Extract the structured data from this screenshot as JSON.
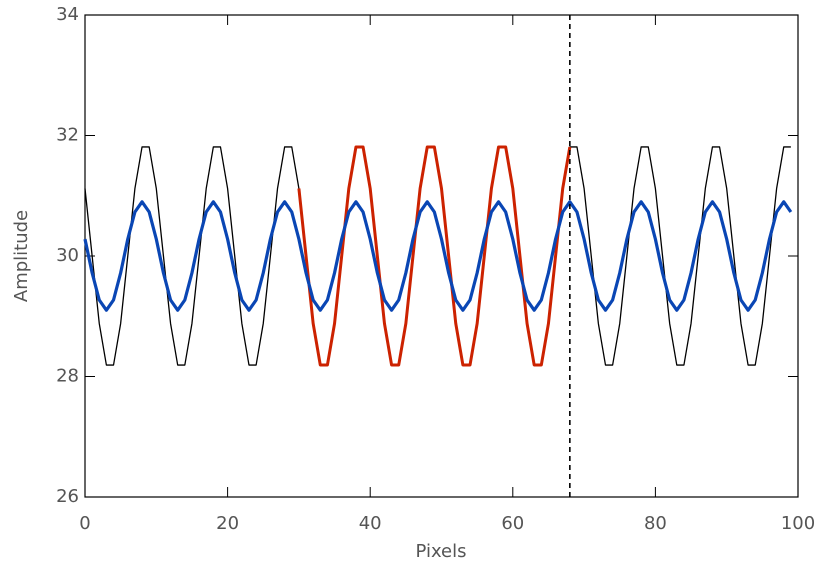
{
  "chart_data": {
    "type": "line",
    "x_label": "Pixels",
    "y_label": "Amplitude",
    "xlim": [
      0,
      100
    ],
    "xticks": [
      0,
      20,
      40,
      60,
      80,
      100
    ],
    "ylim": [
      26,
      34
    ],
    "yticks": [
      26,
      28,
      30,
      32,
      34
    ],
    "vline": 68,
    "x": [
      0,
      1,
      2,
      3,
      4,
      5,
      6,
      7,
      8,
      9,
      10,
      11,
      12,
      13,
      14,
      15,
      16,
      17,
      18,
      19,
      20,
      21,
      22,
      23,
      24,
      25,
      26,
      27,
      28,
      29,
      30,
      31,
      32,
      33,
      34,
      35,
      36,
      37,
      38,
      39,
      40,
      41,
      42,
      43,
      44,
      45,
      46,
      47,
      48,
      49,
      50,
      51,
      52,
      53,
      54,
      55,
      56,
      57,
      58,
      59,
      60,
      61,
      62,
      63,
      64,
      65,
      66,
      67,
      68,
      69,
      70,
      71,
      72,
      73,
      74,
      75,
      76,
      77,
      78,
      79,
      80,
      81,
      82,
      83,
      84,
      85,
      86,
      87,
      88,
      89,
      90,
      91,
      92,
      93,
      94,
      95,
      96,
      97,
      98,
      99
    ],
    "series": [
      {
        "color": "#000000",
        "width": 1.3,
        "values": [
          31.12,
          30,
          28.88,
          28.19,
          28.19,
          28.88,
          30,
          31.12,
          31.81,
          31.81,
          31.12,
          30,
          28.88,
          28.19,
          28.19,
          28.88,
          30,
          31.12,
          31.81,
          31.81,
          31.12,
          30,
          28.88,
          28.19,
          28.19,
          28.88,
          30,
          31.12,
          31.81,
          31.81,
          31.12,
          30,
          28.88,
          28.19,
          28.19,
          28.88,
          30,
          31.12,
          31.81,
          31.81,
          31.12,
          30,
          28.88,
          28.19,
          28.19,
          28.88,
          30,
          31.12,
          31.81,
          31.81,
          31.12,
          30,
          28.88,
          28.19,
          28.19,
          28.88,
          30,
          31.12,
          31.81,
          31.81,
          31.12,
          30,
          28.88,
          28.19,
          28.19,
          28.88,
          30,
          31.12,
          31.81,
          31.81,
          31.12,
          30,
          28.88,
          28.19,
          28.19,
          28.88,
          30,
          31.12,
          31.81,
          31.81,
          31.12,
          30,
          28.88,
          28.19,
          28.19,
          28.88,
          30,
          31.12,
          31.81,
          31.81,
          31.12,
          30,
          28.88,
          28.19,
          28.19,
          28.88,
          30,
          31.12,
          31.81,
          31.81
        ]
      },
      {
        "color": "#cc2200",
        "width": 3,
        "values": [
          null,
          null,
          null,
          null,
          null,
          null,
          null,
          null,
          null,
          null,
          null,
          null,
          null,
          null,
          null,
          null,
          null,
          null,
          null,
          null,
          null,
          null,
          null,
          null,
          null,
          null,
          null,
          null,
          null,
          null,
          31.12,
          30,
          28.88,
          28.19,
          28.19,
          28.88,
          30,
          31.12,
          31.81,
          31.81,
          31.12,
          30,
          28.88,
          28.19,
          28.19,
          28.88,
          30,
          31.12,
          31.81,
          31.81,
          31.12,
          30,
          28.88,
          28.19,
          28.19,
          28.88,
          30,
          31.12,
          31.81,
          31.81,
          31.12,
          30,
          28.88,
          28.19,
          28.19,
          28.88,
          30,
          31.12,
          31.81,
          null,
          null,
          null,
          null,
          null,
          null,
          null,
          null,
          null,
          null,
          null,
          null,
          null,
          null,
          null,
          null,
          null,
          null,
          null,
          null,
          null,
          null,
          null,
          null,
          null,
          null,
          null,
          null,
          null,
          null,
          null
        ]
      },
      {
        "color": "#0a46b4",
        "width": 3.2,
        "values": [
          30.28,
          29.72,
          29.27,
          29.1,
          29.27,
          29.72,
          30.28,
          30.73,
          30.9,
          30.73,
          30.28,
          29.72,
          29.27,
          29.1,
          29.27,
          29.72,
          30.28,
          30.73,
          30.9,
          30.73,
          30.28,
          29.72,
          29.27,
          29.1,
          29.27,
          29.72,
          30.28,
          30.73,
          30.9,
          30.73,
          30.28,
          29.72,
          29.27,
          29.1,
          29.27,
          29.72,
          30.28,
          30.73,
          30.9,
          30.73,
          30.28,
          29.72,
          29.27,
          29.1,
          29.27,
          29.72,
          30.28,
          30.73,
          30.9,
          30.73,
          30.28,
          29.72,
          29.27,
          29.1,
          29.27,
          29.72,
          30.28,
          30.73,
          30.9,
          30.73,
          30.28,
          29.72,
          29.27,
          29.1,
          29.27,
          29.72,
          30.28,
          30.73,
          30.9,
          30.73,
          30.28,
          29.72,
          29.27,
          29.1,
          29.27,
          29.72,
          30.28,
          30.73,
          30.9,
          30.73,
          30.28,
          29.72,
          29.27,
          29.1,
          29.27,
          29.72,
          30.28,
          30.73,
          30.9,
          30.73,
          30.28,
          29.72,
          29.27,
          29.1,
          29.27,
          29.72,
          30.28,
          30.73,
          30.9,
          30.73
        ]
      }
    ]
  }
}
